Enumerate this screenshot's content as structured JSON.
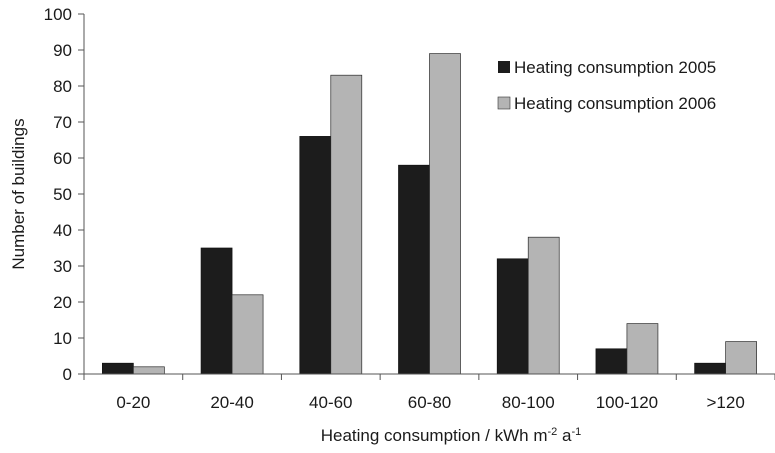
{
  "chart_data": {
    "type": "bar",
    "title": "",
    "xlabel_main": "Heating consumption / kWh m",
    "xlabel_sup1": "-2",
    "xlabel_mid": " a",
    "xlabel_sup2": "-1",
    "ylabel": "Number of buildings",
    "ylim": [
      0,
      100
    ],
    "yticks": [
      0,
      10,
      20,
      30,
      40,
      50,
      60,
      70,
      80,
      90,
      100
    ],
    "categories": [
      "0-20",
      "20-40",
      "40-60",
      "60-80",
      "80-100",
      "100-120",
      ">120"
    ],
    "series": [
      {
        "name": "Heating consumption 2005",
        "color": "#1c1c1c",
        "values": [
          3,
          35,
          66,
          58,
          32,
          7,
          3
        ]
      },
      {
        "name": "Heating consumption 2006",
        "color": "#b4b4b4",
        "values": [
          2,
          22,
          83,
          89,
          38,
          14,
          9
        ]
      }
    ],
    "grid": false,
    "legend_position": "top-right"
  }
}
